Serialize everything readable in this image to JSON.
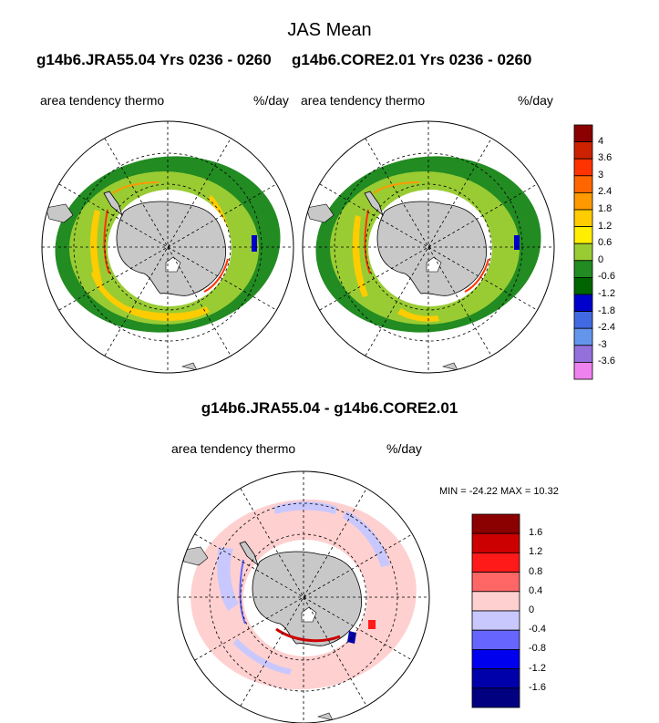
{
  "title": "JAS Mean",
  "panels": [
    {
      "run": "g14b6.JRA55.04  Yrs 0236 - 0260",
      "left_label": "area tendency thermo",
      "right_label": "%/day"
    },
    {
      "run": "g14b6.CORE2.01  Yrs 0236 - 0260",
      "left_label": "area tendency thermo",
      "right_label": "%/day"
    }
  ],
  "diff": {
    "title": "g14b6.JRA55.04 - g14b6.CORE2.01",
    "left_label": "area tendency thermo",
    "right_label": "%/day",
    "minmax": "MIN = -24.22 MAX =  10.32"
  },
  "colorbar_main": {
    "labels": [
      "4",
      "3.6",
      "3",
      "2.4",
      "1.8",
      "1.2",
      "0.6",
      "0",
      "-0.6",
      "-1.2",
      "-1.8",
      "-2.4",
      "-3",
      "-3.6"
    ],
    "colors": [
      "#8b0000",
      "#cc2200",
      "#ff3300",
      "#ff6600",
      "#ff9900",
      "#ffcc00",
      "#ffee00",
      "#99cc33",
      "#228b22",
      "#006400",
      "#0000cc",
      "#4169e1",
      "#6495ed",
      "#9370db",
      "#ee82ee"
    ]
  },
  "colorbar_diff": {
    "labels": [
      "1.6",
      "1.2",
      "0.8",
      "0.4",
      "0",
      "-0.4",
      "-0.8",
      "-1.2",
      "-1.6"
    ],
    "colors": [
      "#8b0000",
      "#cc0000",
      "#ff1a1a",
      "#ff6666",
      "#ffd0d0",
      "#c8c8ff",
      "#6666ff",
      "#0000ee",
      "#0000aa",
      "#000080"
    ]
  }
}
